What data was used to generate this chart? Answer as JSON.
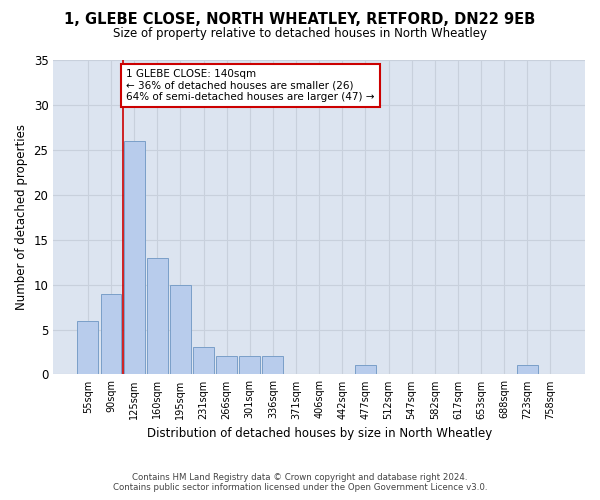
{
  "title": "1, GLEBE CLOSE, NORTH WHEATLEY, RETFORD, DN22 9EB",
  "subtitle": "Size of property relative to detached houses in North Wheatley",
  "xlabel": "Distribution of detached houses by size in North Wheatley",
  "ylabel": "Number of detached properties",
  "bin_labels": [
    "55sqm",
    "90sqm",
    "125sqm",
    "160sqm",
    "195sqm",
    "231sqm",
    "266sqm",
    "301sqm",
    "336sqm",
    "371sqm",
    "406sqm",
    "442sqm",
    "477sqm",
    "512sqm",
    "547sqm",
    "582sqm",
    "617sqm",
    "653sqm",
    "688sqm",
    "723sqm",
    "758sqm"
  ],
  "bar_values": [
    6,
    9,
    26,
    13,
    10,
    3,
    2,
    2,
    2,
    0,
    0,
    0,
    1,
    0,
    0,
    0,
    0,
    0,
    0,
    1,
    0
  ],
  "bar_color": "#b8ccec",
  "bar_edge_color": "#7a9fc8",
  "ylim": [
    0,
    35
  ],
  "yticks": [
    0,
    5,
    10,
    15,
    20,
    25,
    30,
    35
  ],
  "property_line_bin_index": 2,
  "annotation_text": "1 GLEBE CLOSE: 140sqm\n← 36% of detached houses are smaller (26)\n64% of semi-detached houses are larger (47) →",
  "annotation_box_color": "#ffffff",
  "annotation_border_color": "#cc0000",
  "vline_color": "#cc0000",
  "grid_color": "#c8d0dc",
  "background_color": "#dce4f0",
  "fig_background": "#ffffff",
  "footer_line1": "Contains HM Land Registry data © Crown copyright and database right 2024.",
  "footer_line2": "Contains public sector information licensed under the Open Government Licence v3.0."
}
